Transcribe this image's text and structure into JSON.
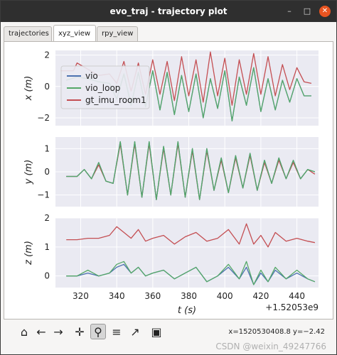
{
  "window": {
    "title": "evo_traj - trajectory plot",
    "minimize_icon": "minimize-icon",
    "maximize_icon": "maximize-icon",
    "close_icon": "close-icon"
  },
  "tabs": [
    {
      "label": "trajectories",
      "active": false
    },
    {
      "label": "xyz_view",
      "active": true
    },
    {
      "label": "rpy_view",
      "active": false
    }
  ],
  "chart_data": [
    {
      "type": "line",
      "ylabel": "x (m)",
      "yticks": [
        "2",
        "0",
        "−2"
      ],
      "ylim": [
        -2.5,
        2.3
      ],
      "legend": {
        "placement": "middle-left",
        "entries": [
          "vio",
          "vio_loop",
          "gt_imu_room1"
        ]
      },
      "series": [
        {
          "name": "vio",
          "color": "#4c72b0",
          "x": [
            312,
            318,
            324,
            330,
            336,
            340,
            344,
            348,
            352,
            356,
            360,
            364,
            368,
            372,
            376,
            380,
            384,
            388,
            392,
            396,
            400,
            404,
            408,
            412,
            416,
            420,
            424,
            428,
            432,
            436,
            440,
            444,
            448
          ],
          "y": [
            0.4,
            0.6,
            0.5,
            0.3,
            0.2,
            -0.8,
            0.8,
            -1.2,
            0.9,
            -1.3,
            1.0,
            -1.5,
            0.9,
            -1.8,
            0.7,
            -1.6,
            0.8,
            -2.0,
            0.5,
            -1.4,
            1.0,
            -2.2,
            0.6,
            -1.2,
            1.2,
            -1.6,
            0.5,
            -1.5,
            0.4,
            -1.0,
            0.5,
            -0.6,
            -0.6
          ]
        },
        {
          "name": "vio_loop",
          "color": "#55a868",
          "x": [
            312,
            318,
            324,
            330,
            336,
            340,
            344,
            348,
            352,
            356,
            360,
            364,
            368,
            372,
            376,
            380,
            384,
            388,
            392,
            396,
            400,
            404,
            408,
            412,
            416,
            420,
            424,
            428,
            432,
            436,
            440,
            444,
            448
          ],
          "y": [
            0.4,
            0.6,
            0.5,
            0.3,
            0.2,
            -0.8,
            0.8,
            -1.2,
            0.9,
            -1.3,
            1.0,
            -1.5,
            0.9,
            -1.8,
            0.7,
            -1.6,
            0.8,
            -2.0,
            0.5,
            -1.4,
            1.0,
            -2.2,
            0.6,
            -1.2,
            1.2,
            -1.6,
            0.5,
            -1.5,
            0.4,
            -1.0,
            0.5,
            -0.6,
            -0.6
          ]
        },
        {
          "name": "gt_imu_room1",
          "color": "#c44e52",
          "x": [
            309,
            316,
            318,
            324,
            330,
            336,
            340,
            344,
            348,
            352,
            356,
            360,
            364,
            368,
            372,
            376,
            380,
            384,
            388,
            392,
            396,
            400,
            404,
            408,
            412,
            416,
            420,
            424,
            428,
            432,
            436,
            440,
            444,
            448
          ],
          "y": [
            1.0,
            1.0,
            1.5,
            1.1,
            0.7,
            0.8,
            0.2,
            1.6,
            -0.3,
            1.5,
            -0.5,
            1.7,
            -0.5,
            1.6,
            -0.9,
            1.9,
            -0.6,
            1.7,
            -1.0,
            2.2,
            -0.6,
            1.8,
            -1.2,
            1.7,
            -0.5,
            2.1,
            -0.5,
            1.9,
            -0.6,
            1.4,
            -0.2,
            1.2,
            0.3,
            0.2
          ]
        }
      ]
    },
    {
      "type": "line",
      "ylabel": "y (m)",
      "yticks": [
        "1",
        "0",
        "−1"
      ],
      "ylim": [
        -1.5,
        1.5
      ],
      "series": [
        {
          "name": "vio",
          "color": "#4c72b0",
          "x": [
            312,
            318,
            322,
            326,
            330,
            334,
            338,
            342,
            346,
            350,
            354,
            358,
            362,
            366,
            370,
            374,
            378,
            382,
            386,
            390,
            394,
            398,
            402,
            406,
            410,
            414,
            418,
            422,
            426,
            430,
            434,
            438,
            442,
            446,
            450
          ],
          "y": [
            -0.2,
            -0.2,
            0.1,
            -0.3,
            0.4,
            -0.4,
            -0.5,
            1.3,
            -1.0,
            1.3,
            -1.1,
            1.3,
            -1.2,
            1.1,
            -1.0,
            1.3,
            -1.1,
            1.0,
            -1.2,
            1.0,
            -0.8,
            0.6,
            -0.9,
            0.7,
            -0.7,
            0.8,
            -0.8,
            0.5,
            -0.5,
            0.6,
            -0.3,
            0.5,
            -0.3,
            0.1,
            0.0
          ]
        },
        {
          "name": "vio_loop",
          "color": "#55a868",
          "x": [
            312,
            318,
            322,
            326,
            330,
            334,
            338,
            342,
            346,
            350,
            354,
            358,
            362,
            366,
            370,
            374,
            378,
            382,
            386,
            390,
            394,
            398,
            402,
            406,
            410,
            414,
            418,
            422,
            426,
            430,
            434,
            438,
            442,
            446,
            450
          ],
          "y": [
            -0.2,
            -0.2,
            0.1,
            -0.3,
            0.4,
            -0.4,
            -0.5,
            1.3,
            -1.0,
            1.3,
            -1.1,
            1.3,
            -1.2,
            1.1,
            -1.0,
            1.3,
            -1.1,
            1.0,
            -1.2,
            1.0,
            -0.8,
            0.6,
            -0.9,
            0.7,
            -0.7,
            0.8,
            -0.8,
            0.5,
            -0.5,
            0.6,
            -0.3,
            0.5,
            -0.3,
            0.1,
            0.0
          ]
        },
        {
          "name": "gt_imu_room1",
          "color": "#c44e52",
          "x": [
            312,
            318,
            322,
            326,
            330,
            334,
            338,
            342,
            346,
            350,
            354,
            358,
            362,
            366,
            370,
            374,
            378,
            382,
            386,
            390,
            394,
            398,
            402,
            406,
            410,
            414,
            418,
            422,
            426,
            430,
            434,
            438,
            442,
            446,
            450
          ],
          "y": [
            -0.2,
            -0.2,
            0.1,
            -0.3,
            0.3,
            -0.4,
            -0.5,
            1.2,
            -1.0,
            1.2,
            -1.1,
            1.2,
            -1.2,
            1.0,
            -1.0,
            1.2,
            -1.1,
            0.9,
            -1.2,
            0.9,
            -0.8,
            0.5,
            -0.9,
            0.6,
            -0.7,
            0.7,
            -0.8,
            0.4,
            -0.5,
            0.5,
            -0.3,
            0.4,
            -0.3,
            0.1,
            -0.1
          ]
        }
      ]
    },
    {
      "type": "line",
      "ylabel": "z (m)",
      "yticks": [
        "2",
        "1",
        "0"
      ],
      "ylim": [
        -0.4,
        2.0
      ],
      "xlabel": "t (s)",
      "xticks": [
        "320",
        "340",
        "360",
        "380",
        "400",
        "420",
        "440"
      ],
      "xlim": [
        306,
        452
      ],
      "offset_label": "+1.52053e9",
      "series": [
        {
          "name": "vio",
          "color": "#4c72b0",
          "x": [
            312,
            318,
            324,
            330,
            336,
            340,
            344,
            348,
            352,
            356,
            360,
            366,
            372,
            378,
            384,
            390,
            396,
            402,
            408,
            412,
            416,
            420,
            424,
            428,
            434,
            440,
            446,
            450
          ],
          "y": [
            0.0,
            0.0,
            0.1,
            0.0,
            0.1,
            0.3,
            0.4,
            0.1,
            0.3,
            0.0,
            0.1,
            0.2,
            -0.1,
            0.1,
            0.3,
            -0.2,
            0.0,
            0.3,
            -0.1,
            0.3,
            -0.3,
            0.1,
            -0.2,
            0.2,
            -0.1,
            0.1,
            -0.1,
            -0.2
          ]
        },
        {
          "name": "vio_loop",
          "color": "#55a868",
          "x": [
            312,
            318,
            324,
            330,
            336,
            340,
            344,
            348,
            352,
            356,
            360,
            366,
            372,
            378,
            384,
            390,
            396,
            402,
            408,
            412,
            416,
            420,
            424,
            428,
            434,
            440,
            446,
            450
          ],
          "y": [
            0.0,
            0.0,
            0.2,
            0.0,
            0.1,
            0.4,
            0.5,
            0.1,
            0.3,
            0.0,
            0.1,
            0.2,
            -0.1,
            0.1,
            0.3,
            -0.2,
            0.0,
            0.4,
            -0.1,
            0.5,
            -0.3,
            0.2,
            -0.2,
            0.3,
            -0.1,
            0.2,
            -0.1,
            -0.2
          ]
        },
        {
          "name": "gt_imu_room1",
          "color": "#c44e52",
          "x": [
            312,
            318,
            324,
            330,
            336,
            340,
            344,
            348,
            352,
            356,
            360,
            366,
            372,
            378,
            384,
            390,
            396,
            402,
            408,
            412,
            416,
            420,
            424,
            428,
            434,
            440,
            446,
            450
          ],
          "y": [
            1.25,
            1.25,
            1.3,
            1.3,
            1.4,
            1.7,
            1.5,
            1.3,
            1.6,
            1.2,
            1.3,
            1.4,
            1.1,
            1.35,
            1.5,
            1.2,
            1.3,
            1.6,
            1.1,
            1.8,
            1.1,
            1.4,
            1.0,
            1.5,
            1.2,
            1.3,
            1.2,
            1.15
          ]
        }
      ]
    }
  ],
  "toolbar": [
    {
      "icon": "home-icon",
      "glyph": "⌂"
    },
    {
      "icon": "back-arrow-icon",
      "glyph": "←"
    },
    {
      "icon": "forward-arrow-icon",
      "glyph": "→"
    },
    {
      "icon": "pan-move-icon",
      "glyph": "✛"
    },
    {
      "icon": "zoom-magnifier-icon",
      "glyph": "⚲",
      "active": true
    },
    {
      "icon": "subplots-config-icon",
      "glyph": "≡"
    },
    {
      "icon": "edit-axes-icon",
      "glyph": "↗"
    },
    {
      "icon": "save-floppy-icon",
      "glyph": "▣"
    }
  ],
  "status": {
    "coords": "x=1520530408.8 y=−2.42"
  },
  "watermark": "CSDN @weixin_49247766",
  "colors": {
    "plot_bg": "#eaeaf2",
    "grid": "#ffffff",
    "titlebar": "#2f2f2f",
    "close_button": "#e95420"
  }
}
